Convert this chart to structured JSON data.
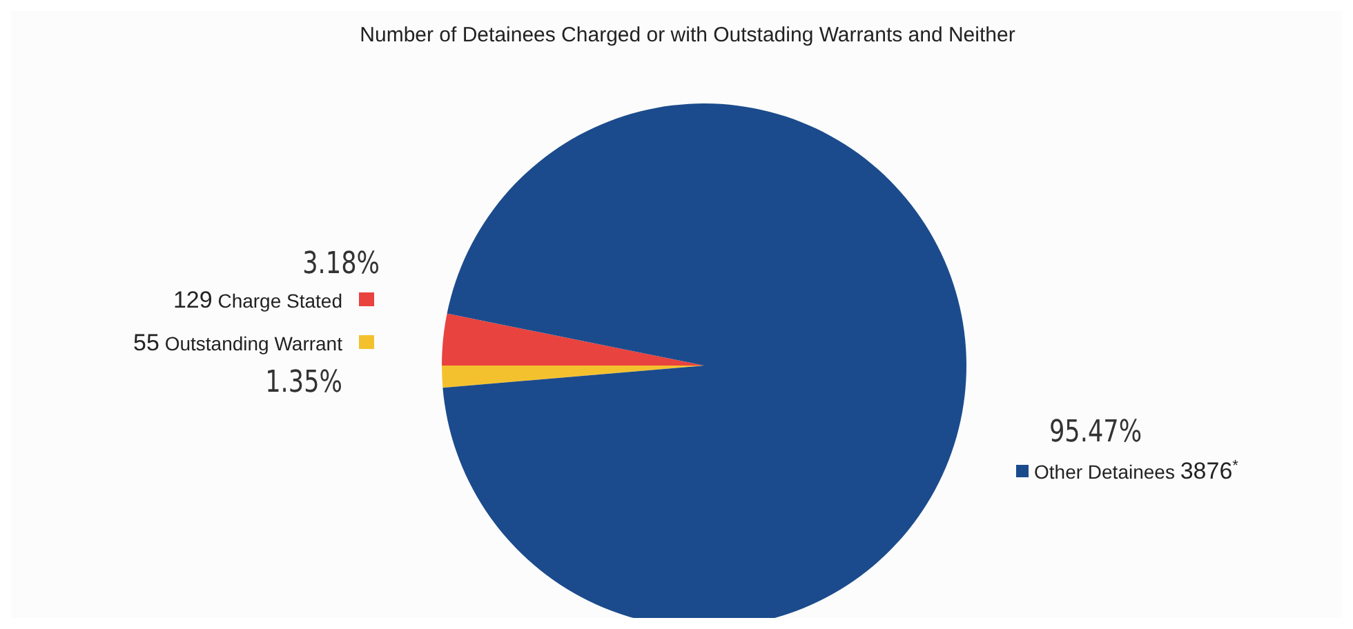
{
  "chart_data": {
    "type": "pie",
    "title": "Number of Detainees Charged or with Outstading Warrants and Neither",
    "categories": [
      "129 Charge Stated",
      "55 Outstanding Warrant",
      "Other Detainees 3876$^{*}$"
    ],
    "values": [
      3.18,
      1.35,
      95.47
    ],
    "colors": [
      "#e8433f",
      "#f4c12e",
      "#1b4b8c"
    ],
    "value_labels": [
      "3.18%",
      "1.35%",
      "95.47%"
    ],
    "legend": "left"
  }
}
